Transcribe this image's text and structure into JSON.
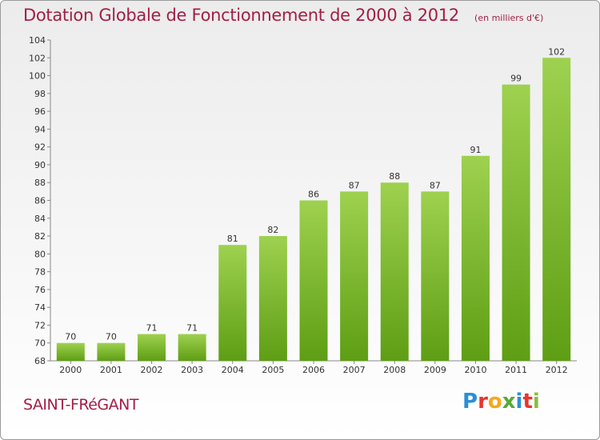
{
  "header": {
    "title": "Dotation Globale de Fonctionnement de 2000 à 2012",
    "unit": "(en milliers d'€)"
  },
  "footer": {
    "commune": "SAINT-FRéGANT",
    "logo": {
      "text": "Proxiti",
      "letters": [
        {
          "ch": "P",
          "color": "#2a8fd6"
        },
        {
          "ch": "r",
          "color": "#e8352e"
        },
        {
          "ch": "o",
          "color": "#f4a81c"
        },
        {
          "ch": "x",
          "color": "#5aa936"
        },
        {
          "ch": "i",
          "color": "#2a8fd6"
        },
        {
          "ch": "t",
          "color": "#e8352e"
        },
        {
          "ch": "i",
          "color": "#8bbe3a"
        }
      ]
    }
  },
  "chart_data": {
    "type": "bar",
    "title": "Dotation Globale de Fonctionnement de 2000 à 2012",
    "subtitle": "(en milliers d'€)",
    "xlabel": "",
    "ylabel": "",
    "categories": [
      "2000",
      "2001",
      "2002",
      "2003",
      "2004",
      "2005",
      "2006",
      "2007",
      "2008",
      "2009",
      "2010",
      "2011",
      "2012"
    ],
    "values": [
      70,
      70,
      71,
      71,
      81,
      82,
      86,
      87,
      88,
      87,
      91,
      99,
      102
    ],
    "ylim": [
      68,
      104
    ],
    "yticks": [
      68,
      70,
      72,
      74,
      76,
      78,
      80,
      82,
      84,
      86,
      88,
      90,
      92,
      94,
      96,
      98,
      100,
      102,
      104
    ],
    "grid": false,
    "legend": "none",
    "colors": {
      "bar_top": "#9ed14f",
      "bar_bottom": "#5e9e14",
      "axis": "#888888",
      "label": "#333333",
      "title": "#a31e45"
    }
  }
}
